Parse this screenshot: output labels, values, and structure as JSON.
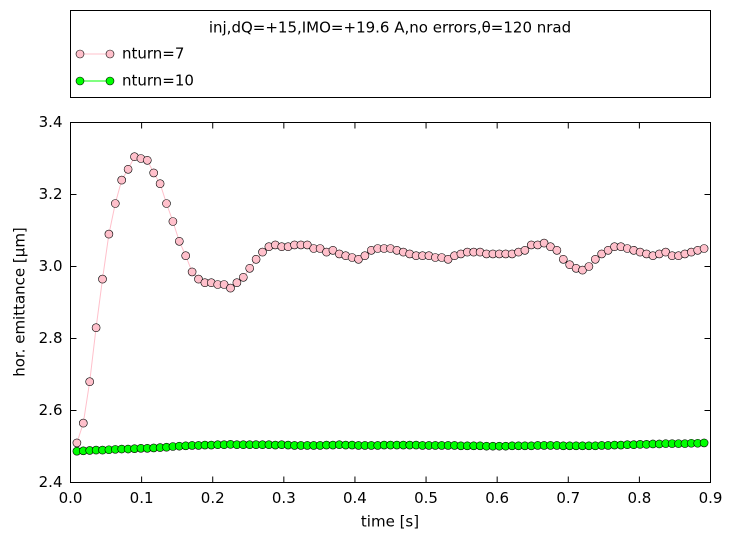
{
  "chart_data": {
    "type": "line",
    "title": "inj,dQ=+15,IMO=+19.6 A,no errors,θ=120 nrad",
    "xlabel": "time [s]",
    "ylabel": "hor. emittance [μm]",
    "x": [
      0.009,
      0.018,
      0.027,
      0.036,
      0.045,
      0.054,
      0.063,
      0.072,
      0.081,
      0.09,
      0.099,
      0.108,
      0.117,
      0.126,
      0.135,
      0.144,
      0.153,
      0.162,
      0.171,
      0.18,
      0.189,
      0.198,
      0.207,
      0.216,
      0.225,
      0.234,
      0.243,
      0.252,
      0.261,
      0.27,
      0.279,
      0.288,
      0.297,
      0.306,
      0.315,
      0.324,
      0.333,
      0.342,
      0.351,
      0.36,
      0.369,
      0.378,
      0.387,
      0.396,
      0.405,
      0.414,
      0.423,
      0.432,
      0.441,
      0.45,
      0.459,
      0.468,
      0.477,
      0.486,
      0.495,
      0.504,
      0.513,
      0.522,
      0.531,
      0.54,
      0.549,
      0.558,
      0.567,
      0.576,
      0.585,
      0.594,
      0.603,
      0.612,
      0.621,
      0.63,
      0.639,
      0.648,
      0.657,
      0.666,
      0.675,
      0.684,
      0.693,
      0.702,
      0.711,
      0.72,
      0.729,
      0.738,
      0.747,
      0.756,
      0.765,
      0.774,
      0.783,
      0.792,
      0.801,
      0.81,
      0.819,
      0.828,
      0.837,
      0.846,
      0.855,
      0.864,
      0.873,
      0.882,
      0.891
    ],
    "series": [
      {
        "name": "nturn=7",
        "color": "#ffc0cb",
        "values": [
          2.51,
          2.565,
          2.68,
          2.83,
          2.965,
          3.09,
          3.175,
          3.24,
          3.27,
          3.305,
          3.3,
          3.295,
          3.26,
          3.23,
          3.175,
          3.125,
          3.07,
          3.03,
          2.985,
          2.965,
          2.955,
          2.955,
          2.95,
          2.95,
          2.94,
          2.955,
          2.97,
          2.995,
          3.02,
          3.04,
          3.055,
          3.06,
          3.055,
          3.055,
          3.06,
          3.06,
          3.06,
          3.05,
          3.05,
          3.04,
          3.045,
          3.035,
          3.03,
          3.025,
          3.02,
          3.03,
          3.045,
          3.05,
          3.05,
          3.05,
          3.045,
          3.04,
          3.035,
          3.03,
          3.03,
          3.03,
          3.025,
          3.025,
          3.02,
          3.03,
          3.035,
          3.04,
          3.04,
          3.04,
          3.035,
          3.035,
          3.035,
          3.035,
          3.035,
          3.04,
          3.045,
          3.06,
          3.06,
          3.065,
          3.055,
          3.045,
          3.02,
          3.005,
          2.995,
          2.99,
          3.0,
          3.02,
          3.035,
          3.045,
          3.055,
          3.055,
          3.05,
          3.045,
          3.04,
          3.035,
          3.03,
          3.035,
          3.04,
          3.03,
          3.03,
          3.035,
          3.04,
          3.045,
          3.05
        ]
      },
      {
        "name": "nturn=10",
        "color": "#00ff00",
        "values": [
          2.487,
          2.488,
          2.489,
          2.49,
          2.49,
          2.491,
          2.492,
          2.493,
          2.493,
          2.494,
          2.495,
          2.495,
          2.496,
          2.497,
          2.498,
          2.5,
          2.501,
          2.502,
          2.503,
          2.503,
          2.504,
          2.504,
          2.505,
          2.505,
          2.506,
          2.505,
          2.505,
          2.505,
          2.505,
          2.505,
          2.505,
          2.504,
          2.505,
          2.504,
          2.503,
          2.503,
          2.503,
          2.503,
          2.503,
          2.504,
          2.504,
          2.505,
          2.504,
          2.504,
          2.503,
          2.503,
          2.503,
          2.503,
          2.504,
          2.504,
          2.504,
          2.504,
          2.504,
          2.504,
          2.503,
          2.503,
          2.503,
          2.503,
          2.503,
          2.503,
          2.502,
          2.502,
          2.502,
          2.502,
          2.501,
          2.501,
          2.501,
          2.501,
          2.502,
          2.502,
          2.502,
          2.502,
          2.503,
          2.503,
          2.503,
          2.503,
          2.502,
          2.502,
          2.502,
          2.502,
          2.502,
          2.502,
          2.503,
          2.503,
          2.504,
          2.504,
          2.505,
          2.505,
          2.506,
          2.506,
          2.507,
          2.507,
          2.508,
          2.508,
          2.508,
          2.508,
          2.509,
          2.509,
          2.51
        ]
      }
    ],
    "xlim": [
      0,
      0.9
    ],
    "xticks": [
      {
        "value": 0,
        "label": "0.0"
      },
      0.1,
      0.2,
      0.3,
      0.4,
      0.5,
      0.6,
      0.7,
      0.8,
      0.9
    ],
    "ylim": [
      2.4,
      3.4
    ],
    "yticks": [
      2.4,
      2.6,
      2.8,
      {
        "value": 3,
        "label": "3.0"
      },
      3.2,
      3.4
    ],
    "grid": false
  }
}
